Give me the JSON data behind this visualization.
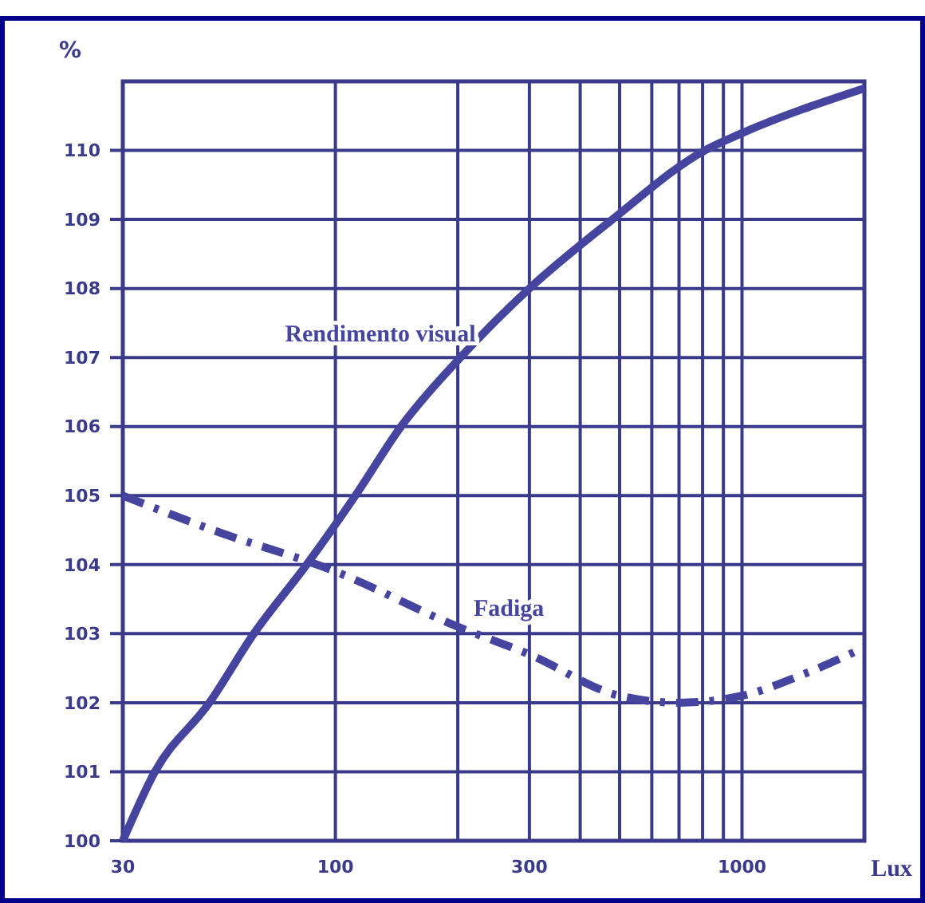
{
  "chart_data": {
    "type": "line",
    "xlabel": "Lux",
    "ylabel": "%",
    "log": "x",
    "grid": true,
    "legend": false,
    "xlim": [
      30,
      2000
    ],
    "ylim": [
      100,
      111
    ],
    "xticks": [
      30,
      100,
      {
        "value": 200,
        "label": null
      },
      300,
      {
        "value": 400,
        "label": null
      },
      {
        "value": 500,
        "label": null
      },
      {
        "value": 600,
        "label": null
      },
      {
        "value": 700,
        "label": null
      },
      {
        "value": 800,
        "label": null
      },
      {
        "value": 900,
        "label": null
      },
      1000
    ],
    "yticks": [
      100,
      101,
      102,
      103,
      104,
      105,
      106,
      107,
      108,
      109,
      110
    ],
    "series": [
      {
        "name": "Rendimento visual",
        "color": "#4545a0",
        "line_style": "solid",
        "x": [
          30,
          36,
          49,
          63,
          85,
          112,
          145,
          203,
          300,
          480,
          810,
          1000,
          2000
        ],
        "values": [
          100,
          101,
          102,
          103,
          104,
          105,
          106,
          107,
          108,
          109,
          110,
          110.25,
          110.9
        ]
      },
      {
        "name": "Fadiga",
        "color": "#4545a0",
        "line_style": "dashed",
        "x": [
          30,
          50,
          100,
          200,
          300,
          500,
          700,
          1000,
          1400,
          2000
        ],
        "values": [
          105,
          104.5,
          103.9,
          103.1,
          102.7,
          102.1,
          102,
          102.1,
          102.4,
          102.8
        ]
      }
    ]
  }
}
